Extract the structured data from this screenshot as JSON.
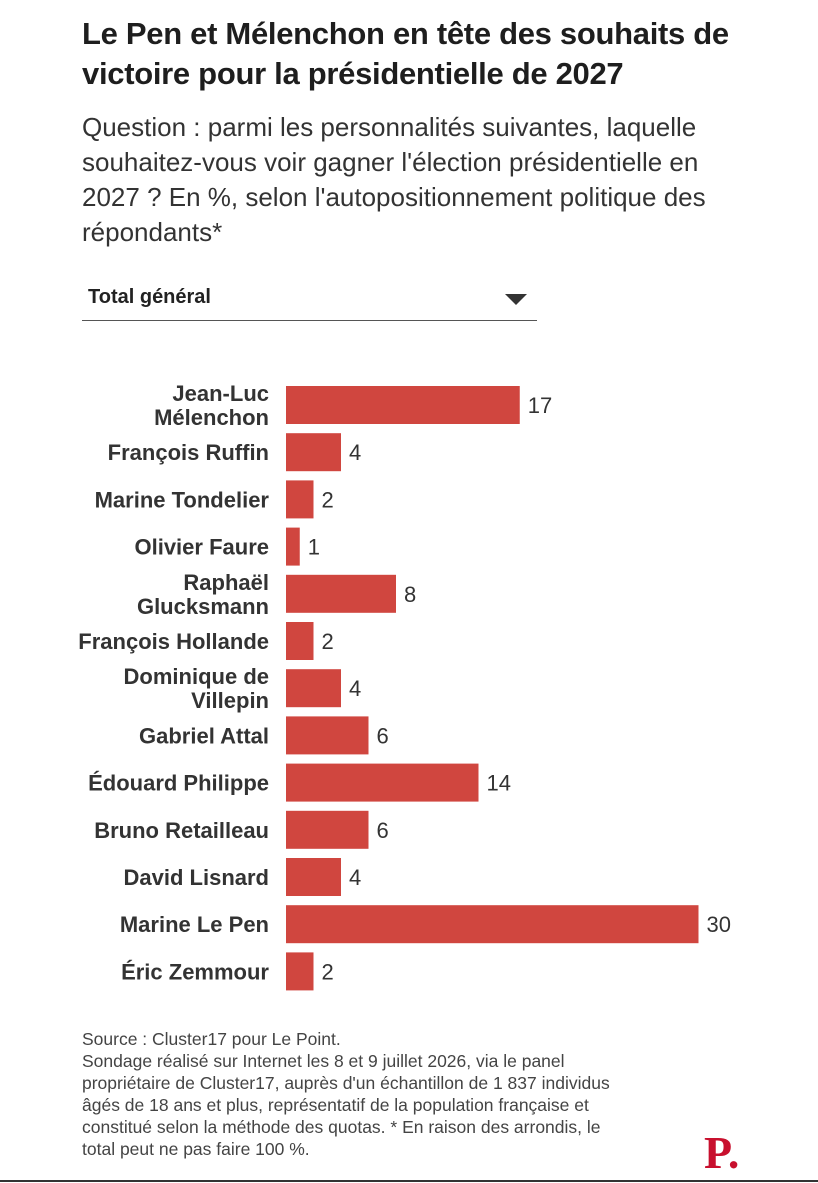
{
  "title": "Le Pen et Mélenchon en tête des souhaits de victoire pour la présidentielle de 2027",
  "subtitle": "Question : parmi les personnalités suivantes, laquelle souhaitez-vous voir gagner l'élection présidentielle en 2027 ? En %, selon l'autopositionnement politique des répondants*",
  "dropdown": {
    "selected": "Total général",
    "icon": "chevron-down-icon"
  },
  "colors": {
    "bar": "#d0463f",
    "text": "#333333"
  },
  "chart_data": {
    "type": "bar",
    "orientation": "horizontal",
    "categories": [
      "Jean-Luc Mélenchon",
      "François Ruffin",
      "Marine Tondelier",
      "Olivier Faure",
      "Raphaël Glucksmann",
      "François Hollande",
      "Dominique de Villepin",
      "Gabriel Attal",
      "Édouard Philippe",
      "Bruno Retailleau",
      "David Lisnard",
      "Marine Le Pen",
      "Éric Zemmour"
    ],
    "category_lines": [
      [
        "Jean-Luc",
        "Mélenchon"
      ],
      [
        "François Ruffin"
      ],
      [
        "Marine Tondelier"
      ],
      [
        "Olivier Faure"
      ],
      [
        "Raphaël",
        "Glucksmann"
      ],
      [
        "François Hollande"
      ],
      [
        "Dominique de",
        "Villepin"
      ],
      [
        "Gabriel Attal"
      ],
      [
        "Édouard Philippe"
      ],
      [
        "Bruno Retailleau"
      ],
      [
        "David Lisnard"
      ],
      [
        "Marine Le Pen"
      ],
      [
        "Éric Zemmour"
      ]
    ],
    "values": [
      17,
      4,
      2,
      1,
      8,
      2,
      4,
      6,
      14,
      6,
      4,
      30,
      2
    ],
    "data_labels": true,
    "grid": false,
    "legend": false
  },
  "source_lines": [
    "Source : Cluster17 pour Le Point.",
    "Sondage réalisé sur Internet les 8 et 9 juillet 2026, via le panel",
    "propriétaire de Cluster17, auprès d'un échantillon de 1 837 individus",
    "âgés de 18 ans et plus, représentatif de la population française et",
    "constitué selon la méthode des quotas. * En raison des arrondis, le",
    "total peut ne pas faire 100 %."
  ],
  "logo": "P."
}
